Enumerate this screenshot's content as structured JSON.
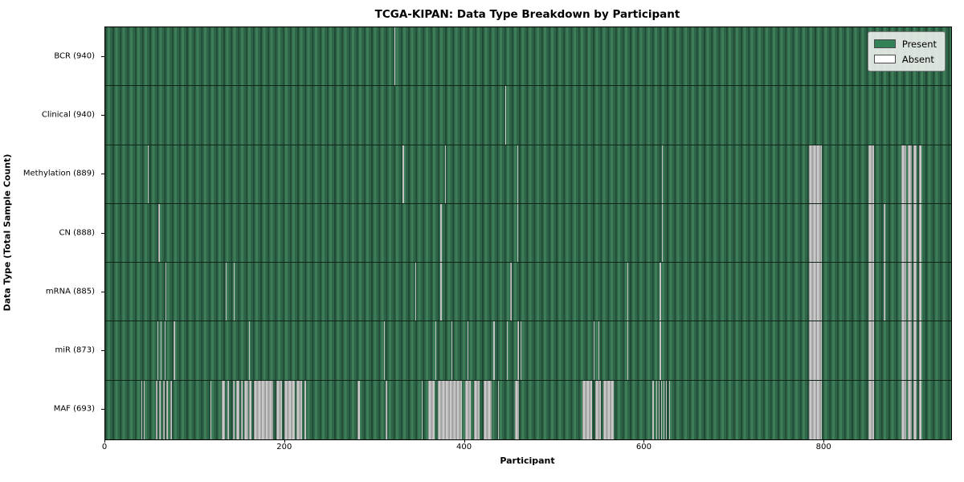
{
  "title": "TCGA-KIPAN: Data Type Breakdown by Participant",
  "axes": {
    "x_label": "Participant",
    "y_label": "Data Type (Total Sample Count)",
    "x_ticks": [
      0,
      200,
      400,
      600,
      800
    ],
    "x_max": 941
  },
  "legend": {
    "items": [
      {
        "name": "present",
        "label": "Present",
        "color": "#338257"
      },
      {
        "name": "absent",
        "label": "Absent",
        "color": "#ffffff"
      }
    ]
  },
  "colors": {
    "present_dark": "#204a33",
    "present_mid": "#2e6448",
    "present_light": "#3d7d58",
    "absent_gray": "#c2c2c2",
    "row_divider": "#10251a"
  },
  "chart_data": {
    "type": "heatmap",
    "title": "TCGA-KIPAN: Data Type Breakdown by Participant",
    "xlabel": "Participant",
    "ylabel": "Data Type (Total Sample Count)",
    "x_range": [
      0,
      941
    ],
    "legend_entries": [
      "Present",
      "Absent"
    ],
    "legend_position": "upper right",
    "rows": [
      {
        "label": "BCR (940)",
        "data_type": "BCR",
        "present_count": 940,
        "absent_stripes": [
          [
            322,
            1
          ]
        ]
      },
      {
        "label": "Clinical (940)",
        "data_type": "Clinical",
        "present_count": 940,
        "absent_stripes": [
          [
            445,
            1
          ]
        ]
      },
      {
        "label": "Methylation (889)",
        "data_type": "Methylation",
        "present_count": 889,
        "absent_stripes": [
          [
            47,
            1
          ],
          [
            331,
            1
          ],
          [
            378,
            1
          ],
          [
            458,
            1
          ],
          [
            619,
            1
          ],
          [
            783,
            14
          ],
          [
            849,
            6
          ],
          [
            886,
            5
          ],
          [
            893,
            4
          ],
          [
            899,
            4
          ],
          [
            905,
            3
          ]
        ]
      },
      {
        "label": "CN (888)",
        "data_type": "CN",
        "present_count": 888,
        "absent_stripes": [
          [
            59,
            2
          ],
          [
            373,
            1
          ],
          [
            458,
            1
          ],
          [
            619,
            1
          ],
          [
            783,
            14
          ],
          [
            849,
            6
          ],
          [
            866,
            2
          ],
          [
            886,
            5
          ],
          [
            893,
            4
          ],
          [
            899,
            4
          ],
          [
            905,
            3
          ]
        ]
      },
      {
        "label": "mRNA (885)",
        "data_type": "mRNA",
        "present_count": 885,
        "absent_stripes": [
          [
            67,
            1
          ],
          [
            134,
            1
          ],
          [
            143,
            1
          ],
          [
            345,
            1
          ],
          [
            373,
            1
          ],
          [
            450,
            2
          ],
          [
            581,
            1
          ],
          [
            617,
            1
          ],
          [
            783,
            14
          ],
          [
            849,
            6
          ],
          [
            866,
            2
          ],
          [
            886,
            5
          ],
          [
            893,
            4
          ],
          [
            899,
            4
          ],
          [
            905,
            3
          ]
        ]
      },
      {
        "label": "miR (873)",
        "data_type": "miR",
        "present_count": 873,
        "absent_stripes": [
          [
            58,
            1
          ],
          [
            62,
            1
          ],
          [
            66,
            1
          ],
          [
            76,
            2
          ],
          [
            160,
            1
          ],
          [
            310,
            1
          ],
          [
            367,
            1
          ],
          [
            385,
            1
          ],
          [
            403,
            1
          ],
          [
            432,
            1
          ],
          [
            447,
            1
          ],
          [
            458,
            2
          ],
          [
            462,
            1
          ],
          [
            543,
            1
          ],
          [
            549,
            1
          ],
          [
            581,
            1
          ],
          [
            617,
            1
          ],
          [
            783,
            14
          ],
          [
            849,
            6
          ],
          [
            886,
            5
          ],
          [
            893,
            4
          ],
          [
            899,
            4
          ],
          [
            905,
            3
          ]
        ]
      },
      {
        "label": "MAF (693)",
        "data_type": "MAF",
        "present_count": 693,
        "absent_stripes": [
          [
            40,
            1
          ],
          [
            43,
            1
          ],
          [
            56,
            2
          ],
          [
            60,
            2
          ],
          [
            64,
            2
          ],
          [
            68,
            2
          ],
          [
            72,
            2
          ],
          [
            117,
            1
          ],
          [
            130,
            3
          ],
          [
            136,
            2
          ],
          [
            142,
            2
          ],
          [
            146,
            3
          ],
          [
            151,
            2
          ],
          [
            155,
            4
          ],
          [
            160,
            3
          ],
          [
            165,
            22
          ],
          [
            190,
            7
          ],
          [
            199,
            12
          ],
          [
            213,
            6
          ],
          [
            222,
            1
          ],
          [
            281,
            2
          ],
          [
            312,
            2
          ],
          [
            352,
            1
          ],
          [
            359,
            7
          ],
          [
            370,
            27
          ],
          [
            400,
            7
          ],
          [
            410,
            6
          ],
          [
            421,
            9
          ],
          [
            437,
            1
          ],
          [
            456,
            4
          ],
          [
            531,
            11
          ],
          [
            545,
            6
          ],
          [
            554,
            12
          ],
          [
            609,
            1
          ],
          [
            613,
            1
          ],
          [
            616,
            1
          ],
          [
            618,
            1
          ],
          [
            621,
            1
          ],
          [
            624,
            1
          ],
          [
            627,
            1
          ],
          [
            783,
            14
          ],
          [
            849,
            6
          ],
          [
            886,
            5
          ],
          [
            893,
            4
          ],
          [
            899,
            4
          ],
          [
            905,
            3
          ]
        ]
      }
    ]
  }
}
